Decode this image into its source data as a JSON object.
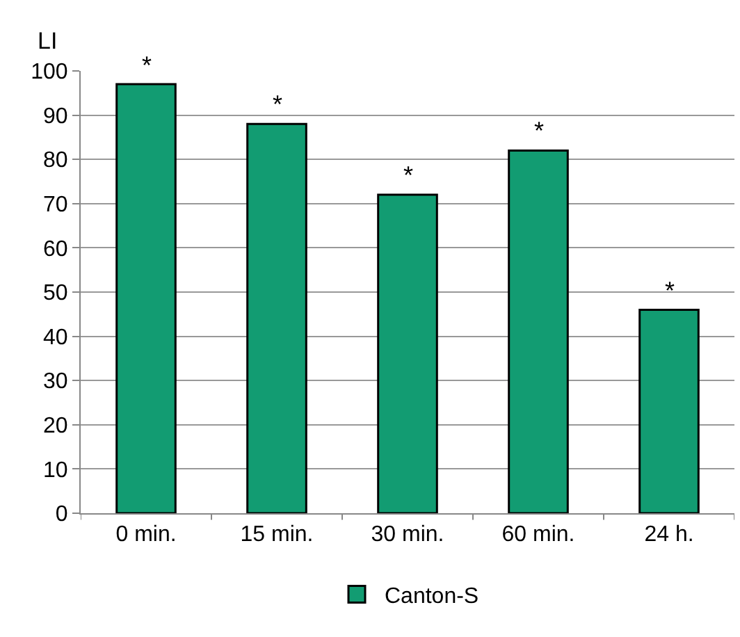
{
  "chart_data": {
    "type": "bar",
    "ylabel": "LI",
    "categories": [
      "0 min.",
      "15 min.",
      "30 min.",
      "60 min.",
      "24 h."
    ],
    "series": [
      {
        "name": "Canton-S",
        "color": "#129c72",
        "values": [
          97,
          88,
          72,
          82,
          46
        ]
      }
    ],
    "ylim": [
      0,
      100
    ],
    "yticks": [
      0,
      10,
      20,
      30,
      40,
      50,
      60,
      70,
      80,
      90,
      100
    ],
    "grid": "y",
    "legend": "bottom",
    "annotations": [
      {
        "text": "*",
        "x": "0 min.",
        "y": 97
      },
      {
        "text": "*",
        "x": "15 min.",
        "y": 88
      },
      {
        "text": "*",
        "x": "30 min.",
        "y": 72
      },
      {
        "text": "*",
        "x": "60 min.",
        "y": 82
      },
      {
        "text": "*",
        "x": "24 h.",
        "y": 46
      }
    ]
  }
}
